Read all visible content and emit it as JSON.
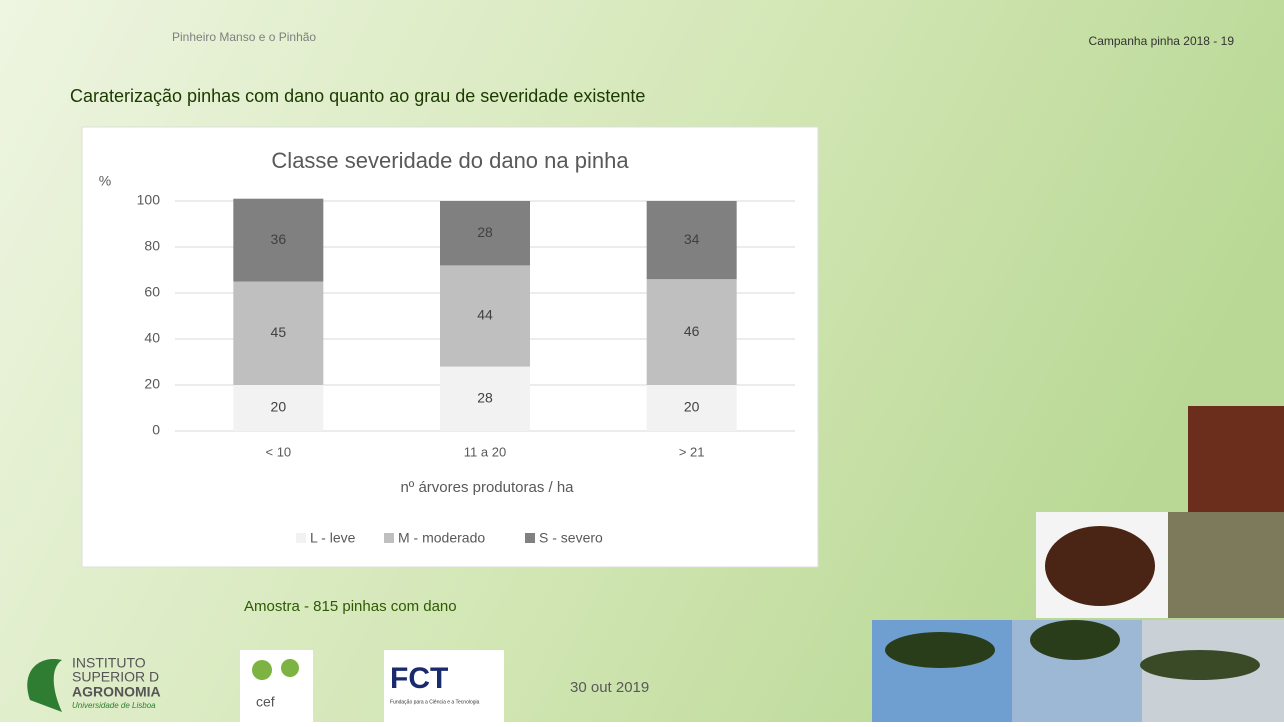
{
  "slide": {
    "header_left": "Pinheiro Manso e o Pinhão",
    "header_right": "Campanha pinha 2018 - 19",
    "title": "Caraterização pinhas com dano quanto ao grau de severidade existente",
    "sample_note": "Amostra - 815 pinhas com dano",
    "date": "30 out 2019",
    "logos": {
      "isa": [
        "INSTITUTO",
        "SUPERIOR D",
        "AGRONOMIA",
        "Universidade de Lisboa"
      ],
      "cef": "cef",
      "fct": "FCT",
      "fct_sub": "Fundação para a Ciência e a Tecnologia"
    }
  },
  "chart_data": {
    "type": "stacked-bar",
    "title": "Classe severidade do dano na pinha",
    "y_label": "%",
    "x_label": "nº árvores produtoras / ha",
    "categories": [
      "< 10",
      "11 a 20",
      "> 21"
    ],
    "series": [
      {
        "name": "L - leve",
        "color": "#f2f2f2",
        "values": [
          20,
          28,
          20
        ]
      },
      {
        "name": "M - moderado",
        "color": "#bfbfbf",
        "values": [
          45,
          44,
          46
        ]
      },
      {
        "name": "S - severo",
        "color": "#808080",
        "values": [
          36,
          28,
          34
        ]
      }
    ],
    "ylim": [
      0,
      100
    ],
    "yticks": [
      0,
      20,
      40,
      60,
      80,
      100
    ],
    "grid": true,
    "legend": "bottom"
  }
}
